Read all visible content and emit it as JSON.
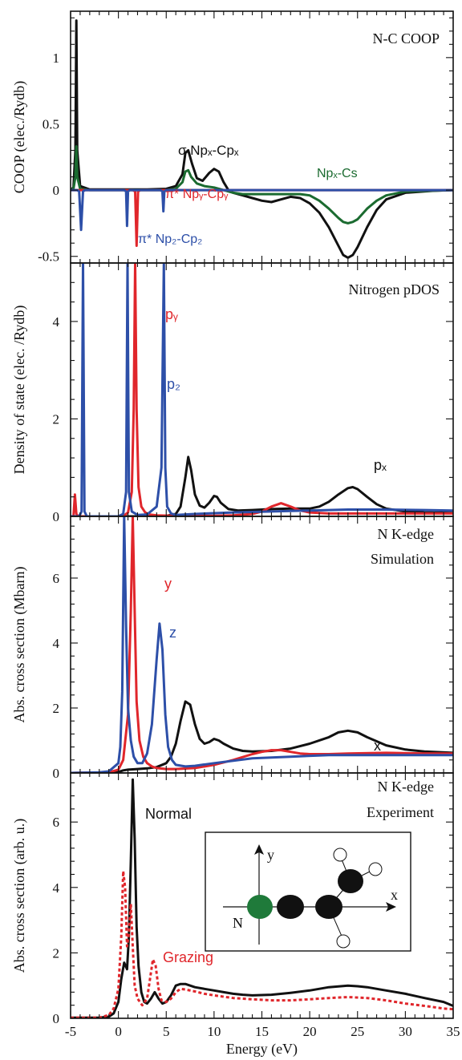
{
  "chart_data": [
    {
      "type": "line",
      "panel": "a",
      "ylabel": "COOP (elec./Rydb)",
      "title": "N-C COOP",
      "xlim": [
        -5,
        35
      ],
      "ylim": [
        -0.55,
        1.35
      ],
      "yticks": [
        -0.5,
        0,
        0.5,
        1
      ],
      "yticklabels": [
        "-0.5",
        "0",
        "0.5",
        "1"
      ],
      "annotations": [
        {
          "text": "σ  Npₓ-Cpₓ",
          "color": "#111111"
        },
        {
          "text": "Npₓ-Cs",
          "color": "#1b6b30"
        },
        {
          "text": "π* Npᵧ-Cpᵧ",
          "color": "#e0262b"
        },
        {
          "text": "π* Np₂-Cp₂",
          "color": "#2d4fa8"
        }
      ],
      "series": [
        {
          "color": "#111111",
          "x": [
            -5,
            -4.7,
            -4.5,
            -4.4,
            -4.3,
            -4,
            -3,
            0,
            3,
            5,
            6,
            6.7,
            7,
            7.3,
            7.7,
            8.2,
            8.8,
            9.5,
            10,
            10.5,
            11,
            11.5,
            12,
            13,
            14,
            15,
            16,
            17,
            18,
            19,
            20,
            21,
            22,
            23,
            23.5,
            24,
            24.5,
            25,
            26,
            27,
            28,
            30,
            33,
            35
          ],
          "y": [
            0,
            0.02,
            0.3,
            1.28,
            0.3,
            0.03,
            0.005,
            0.005,
            0.005,
            0.01,
            0.03,
            0.12,
            0.28,
            0.3,
            0.2,
            0.09,
            0.07,
            0.13,
            0.16,
            0.14,
            0.06,
            0.0,
            -0.02,
            -0.04,
            -0.06,
            -0.08,
            -0.09,
            -0.07,
            -0.05,
            -0.06,
            -0.1,
            -0.17,
            -0.28,
            -0.42,
            -0.49,
            -0.51,
            -0.49,
            -0.43,
            -0.28,
            -0.15,
            -0.07,
            -0.02,
            -0.005,
            0
          ]
        },
        {
          "color": "#1b6b30",
          "x": [
            -5,
            -4.7,
            -4.5,
            -4.4,
            -4.3,
            -4,
            -3,
            0,
            3,
            5,
            6,
            6.7,
            7,
            7.3,
            7.6,
            8.2,
            9,
            10,
            11,
            12,
            13,
            14,
            15,
            16,
            17,
            18,
            19,
            20,
            21,
            22,
            23,
            23.5,
            24,
            24.5,
            25,
            26,
            27,
            28,
            30,
            35
          ],
          "y": [
            0,
            0.01,
            0.1,
            0.33,
            0.1,
            0.01,
            0.0,
            0.0,
            0.0,
            0.0,
            0.01,
            0.06,
            0.14,
            0.15,
            0.1,
            0.05,
            0.03,
            0.02,
            0.0,
            -0.02,
            -0.03,
            -0.03,
            -0.03,
            -0.03,
            -0.03,
            -0.03,
            -0.03,
            -0.04,
            -0.08,
            -0.14,
            -0.21,
            -0.24,
            -0.25,
            -0.24,
            -0.22,
            -0.14,
            -0.08,
            -0.04,
            -0.01,
            0
          ]
        },
        {
          "color": "#e0262b",
          "x": [
            -5,
            1.5,
            1.75,
            1.9,
            2.05,
            2.3,
            3,
            35
          ],
          "y": [
            0,
            0,
            -0.01,
            -0.42,
            -0.01,
            0,
            0,
            0
          ]
        },
        {
          "color": "#2d4fa8",
          "x": [
            -5,
            -4.3,
            -4.1,
            -3.9,
            -3.7,
            -3.5,
            0.6,
            0.8,
            0.9,
            1.0,
            1.2,
            4.4,
            4.6,
            4.7,
            4.8,
            5.0,
            35
          ],
          "y": [
            0,
            0,
            -0.01,
            -0.3,
            -0.01,
            0,
            0,
            -0.01,
            -0.27,
            -0.01,
            0,
            0,
            -0.01,
            -0.16,
            -0.01,
            0,
            0
          ]
        }
      ]
    },
    {
      "type": "line",
      "panel": "b",
      "ylabel": "Density of state (elec. /Rydb)",
      "title": "Nitrogen pDOS",
      "xlim": [
        -5,
        35
      ],
      "ylim": [
        0,
        5.2
      ],
      "yticks": [
        0,
        2,
        4
      ],
      "yticklabels": [
        "0",
        "2",
        "4"
      ],
      "annotations": [
        {
          "text": "pᵧ",
          "color": "#e0262b"
        },
        {
          "text": "p₂",
          "color": "#2d4fa8"
        },
        {
          "text": "pₓ",
          "color": "#111111"
        }
      ],
      "series": [
        {
          "color": "#111111",
          "x": [
            -5,
            3,
            5,
            6,
            6.5,
            7,
            7.3,
            7.6,
            8,
            8.5,
            9,
            9.5,
            10,
            10.3,
            10.7,
            11.5,
            12.5,
            14,
            16,
            18,
            20,
            21,
            22,
            23,
            24,
            24.5,
            25,
            26,
            27,
            28,
            30,
            32,
            35
          ],
          "y": [
            0,
            0,
            0.01,
            0.05,
            0.2,
            0.8,
            1.22,
            0.95,
            0.45,
            0.22,
            0.18,
            0.28,
            0.42,
            0.4,
            0.28,
            0.15,
            0.12,
            0.13,
            0.15,
            0.16,
            0.16,
            0.2,
            0.3,
            0.45,
            0.58,
            0.6,
            0.56,
            0.4,
            0.25,
            0.16,
            0.1,
            0.08,
            0.07
          ]
        },
        {
          "color": "#e0262b",
          "x": [
            -5,
            -4.7,
            -4.55,
            -4.4,
            -4.2,
            -3,
            0,
            0.6,
            1.0,
            1.4,
            1.6,
            1.75,
            1.9,
            2.1,
            2.4,
            2.8,
            3.2,
            4,
            6,
            8,
            10,
            12,
            14,
            15,
            16,
            17,
            18,
            19,
            20,
            22,
            25,
            30,
            35
          ],
          "y": [
            0,
            0,
            0.45,
            0.05,
            0,
            0,
            0,
            0.02,
            0.08,
            0.5,
            2.2,
            5.2,
            2.2,
            0.6,
            0.2,
            0.08,
            0.04,
            0.02,
            0.01,
            0.01,
            0.01,
            0.02,
            0.05,
            0.1,
            0.2,
            0.27,
            0.2,
            0.12,
            0.08,
            0.06,
            0.06,
            0.06,
            0.06
          ]
        },
        {
          "color": "#2d4fa8",
          "x": [
            -5,
            -4.1,
            -3.85,
            -3.7,
            -3.55,
            -3.3,
            0,
            0.5,
            0.8,
            0.95,
            1.1,
            1.4,
            2,
            3,
            4,
            4.5,
            4.75,
            4.9,
            5.1,
            5.5,
            6,
            8,
            12,
            16,
            20,
            24,
            28,
            32,
            35
          ],
          "y": [
            0,
            0,
            0.1,
            5.2,
            0.1,
            0,
            0,
            0.05,
            0.5,
            5.2,
            0.5,
            0.1,
            0.03,
            0.04,
            0.2,
            1.0,
            5.2,
            1.0,
            0.2,
            0.06,
            0.03,
            0.05,
            0.08,
            0.1,
            0.12,
            0.14,
            0.14,
            0.13,
            0.12
          ]
        }
      ]
    },
    {
      "type": "line",
      "panel": "c",
      "ylabel": "Abs. cross section (Mbarn)",
      "title": "N K-edge",
      "subtitle": "Simulation",
      "xlim": [
        -5,
        35
      ],
      "ylim": [
        0,
        7.9
      ],
      "yticks": [
        0,
        2,
        4,
        6
      ],
      "yticklabels": [
        "0",
        "2",
        "4",
        "6"
      ],
      "annotations": [
        {
          "text": "y",
          "color": "#e0262b"
        },
        {
          "text": "z",
          "color": "#2d4fa8"
        },
        {
          "text": "x",
          "color": "#111111"
        }
      ],
      "series": [
        {
          "color": "#111111",
          "x": [
            -5,
            -1,
            0,
            0.5,
            1,
            2,
            3,
            4,
            5,
            5.5,
            6,
            6.5,
            7,
            7.5,
            8,
            8.5,
            9,
            9.5,
            10,
            10.5,
            11,
            12,
            13,
            14,
            16,
            18,
            20,
            22,
            23,
            24,
            25,
            26,
            28,
            30,
            32,
            35
          ],
          "y": [
            0,
            0.01,
            0.03,
            0.08,
            0.1,
            0.12,
            0.14,
            0.18,
            0.3,
            0.5,
            0.9,
            1.6,
            2.2,
            2.1,
            1.5,
            1.05,
            0.9,
            0.95,
            1.05,
            1.0,
            0.9,
            0.75,
            0.68,
            0.66,
            0.68,
            0.75,
            0.9,
            1.1,
            1.25,
            1.3,
            1.25,
            1.1,
            0.85,
            0.72,
            0.66,
            0.62
          ]
        },
        {
          "color": "#e0262b",
          "x": [
            -5,
            -1,
            0,
            0.5,
            1,
            1.3,
            1.5,
            1.7,
            1.9,
            2.2,
            2.6,
            3,
            3.5,
            4,
            5,
            6,
            8,
            10,
            12,
            14,
            15,
            16,
            17,
            18,
            19,
            20,
            22,
            24,
            28,
            32,
            35
          ],
          "y": [
            0,
            0.02,
            0.1,
            0.4,
            1.8,
            5,
            7.9,
            5,
            2.2,
            1.0,
            0.5,
            0.3,
            0.2,
            0.15,
            0.12,
            0.12,
            0.15,
            0.25,
            0.4,
            0.58,
            0.65,
            0.7,
            0.7,
            0.65,
            0.6,
            0.58,
            0.58,
            0.6,
            0.62,
            0.6,
            0.6
          ]
        },
        {
          "color": "#2d4fa8",
          "x": [
            -5,
            -2,
            -1,
            0,
            0.2,
            0.4,
            0.6,
            0.8,
            1.0,
            1.3,
            1.6,
            2,
            2.5,
            3,
            3.5,
            4,
            4.3,
            4.6,
            4.9,
            5.2,
            5.6,
            6,
            7,
            8,
            10,
            14,
            18,
            22,
            26,
            30,
            35
          ],
          "y": [
            0,
            0.02,
            0.05,
            0.3,
            0.8,
            2.5,
            7.9,
            4.5,
            2,
            1.0,
            0.5,
            0.3,
            0.3,
            0.6,
            1.5,
            3.5,
            4.6,
            3.8,
            1.8,
            0.8,
            0.4,
            0.25,
            0.2,
            0.22,
            0.3,
            0.45,
            0.5,
            0.55,
            0.55,
            0.55,
            0.55
          ]
        }
      ]
    },
    {
      "type": "line",
      "panel": "d",
      "ylabel": "Abs. cross section (arb. u.)",
      "xlabel": "Energy  (eV)",
      "title": "N K-edge",
      "subtitle": "Experiment",
      "xlim": [
        -5,
        35
      ],
      "ylim": [
        0,
        7.5
      ],
      "yticks": [
        0,
        2,
        4,
        6
      ],
      "yticklabels": [
        "0",
        "2",
        "4",
        "6"
      ],
      "xticks": [
        -5,
        0,
        5,
        10,
        15,
        20,
        25,
        30,
        35
      ],
      "xticklabels": [
        "-5",
        "0",
        "5",
        "10",
        "15",
        "20",
        "25",
        "30",
        "35"
      ],
      "annotations": [
        {
          "text": "Normal",
          "color": "#111111"
        },
        {
          "text": "Grazing",
          "color": "#e0262b"
        }
      ],
      "series": [
        {
          "name": "Normal",
          "color": "#111111",
          "dashed": false,
          "x": [
            -5,
            -2,
            -1,
            -0.5,
            0,
            0.3,
            0.6,
            0.9,
            1.1,
            1.3,
            1.5,
            1.7,
            1.9,
            2.1,
            2.4,
            2.7,
            3,
            3.4,
            3.8,
            4.2,
            4.6,
            5,
            5.5,
            6,
            6.5,
            7,
            7.5,
            8,
            9,
            10,
            11,
            12,
            13,
            14,
            16,
            18,
            20,
            22,
            24,
            25,
            26,
            28,
            30,
            32,
            34,
            35
          ],
          "y": [
            0.02,
            0.02,
            0.05,
            0.15,
            0.5,
            1.2,
            1.7,
            1.5,
            2.5,
            4.8,
            7.3,
            5.5,
            2.8,
            1.6,
            0.8,
            0.5,
            0.45,
            0.6,
            0.8,
            0.6,
            0.45,
            0.5,
            0.7,
            1.0,
            1.05,
            1.05,
            1.0,
            0.95,
            0.9,
            0.85,
            0.8,
            0.75,
            0.72,
            0.7,
            0.72,
            0.78,
            0.85,
            0.95,
            1.0,
            0.98,
            0.95,
            0.85,
            0.75,
            0.62,
            0.5,
            0.38
          ]
        },
        {
          "name": "Grazing",
          "color": "#e0262b",
          "dashed": true,
          "x": [
            -5,
            -2,
            -1,
            -0.5,
            0,
            0.3,
            0.5,
            0.7,
            0.9,
            1.1,
            1.3,
            1.5,
            1.7,
            2,
            2.5,
            3,
            3.3,
            3.6,
            3.9,
            4.2,
            4.5,
            5,
            5.5,
            6,
            6.5,
            7,
            8,
            9,
            10,
            12,
            14,
            16,
            18,
            20,
            22,
            24,
            26,
            28,
            30,
            32,
            34,
            35
          ],
          "y": [
            0.02,
            0.02,
            0.1,
            0.3,
            0.9,
            2.5,
            4.5,
            4.0,
            2.2,
            2.6,
            3.5,
            2.2,
            1.0,
            0.6,
            0.4,
            0.6,
            1.2,
            1.8,
            1.6,
            0.9,
            0.55,
            0.5,
            0.6,
            0.8,
            0.9,
            0.88,
            0.82,
            0.75,
            0.7,
            0.62,
            0.58,
            0.55,
            0.55,
            0.58,
            0.62,
            0.65,
            0.62,
            0.55,
            0.45,
            0.38,
            0.3,
            0.28
          ]
        }
      ]
    }
  ],
  "inset": {
    "axis_labels": {
      "x": "x",
      "y": "y",
      "atom": "N"
    },
    "atom_colors": {
      "nitrogen": "#1f7a3a",
      "carbon": "#111111",
      "hydrogen": "#ffffff"
    }
  }
}
